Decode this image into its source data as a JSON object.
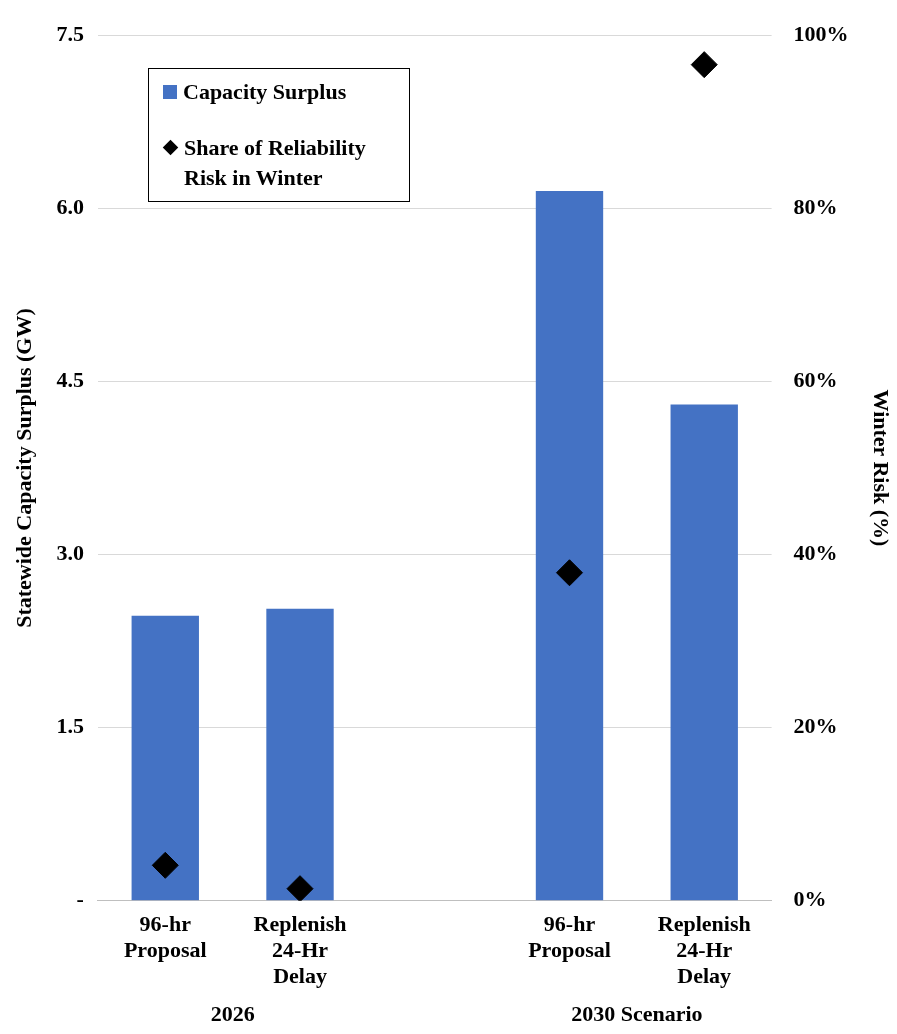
{
  "chart_data": {
    "type": "bar",
    "categories": [
      "96-hr Proposal",
      "Replenish 24-Hr Delay",
      null,
      "96-hr Proposal",
      "Replenish 24-Hr Delay"
    ],
    "series": [
      {
        "name": "Capacity Surplus",
        "color": "#4472c4",
        "values": [
          2.47,
          2.53,
          null,
          6.15,
          4.3
        ]
      },
      {
        "name": "Share of Reliability Risk in Winter",
        "type": "scatter",
        "axis": "y2",
        "marker": "diamond",
        "color": "#000000",
        "values": [
          4.1,
          1.4,
          null,
          37.9,
          96.6
        ]
      }
    ],
    "ylabel": "Statewide Capacity Surplus (GW)",
    "y2label": "Winter Risk (%)",
    "ylim": [
      0,
      7.5
    ],
    "yticks": [
      {
        "value": 0,
        "label": "-"
      },
      1.5,
      {
        "value": 3,
        "label": "3.0"
      },
      4.5,
      {
        "value": 6,
        "label": "6.0"
      },
      7.5
    ],
    "y2lim": [
      0,
      100
    ],
    "y2ticks": [
      {
        "value": 0,
        "label": "0%"
      },
      {
        "value": 20,
        "label": "20%"
      },
      {
        "value": 40,
        "label": "40%"
      },
      {
        "value": 60,
        "label": "60%"
      },
      {
        "value": 80,
        "label": "80%"
      },
      {
        "value": 100,
        "label": "100%"
      }
    ],
    "grid": "y",
    "legend": "top left",
    "annotations": [
      "2026",
      "2030 Scenario"
    ]
  }
}
